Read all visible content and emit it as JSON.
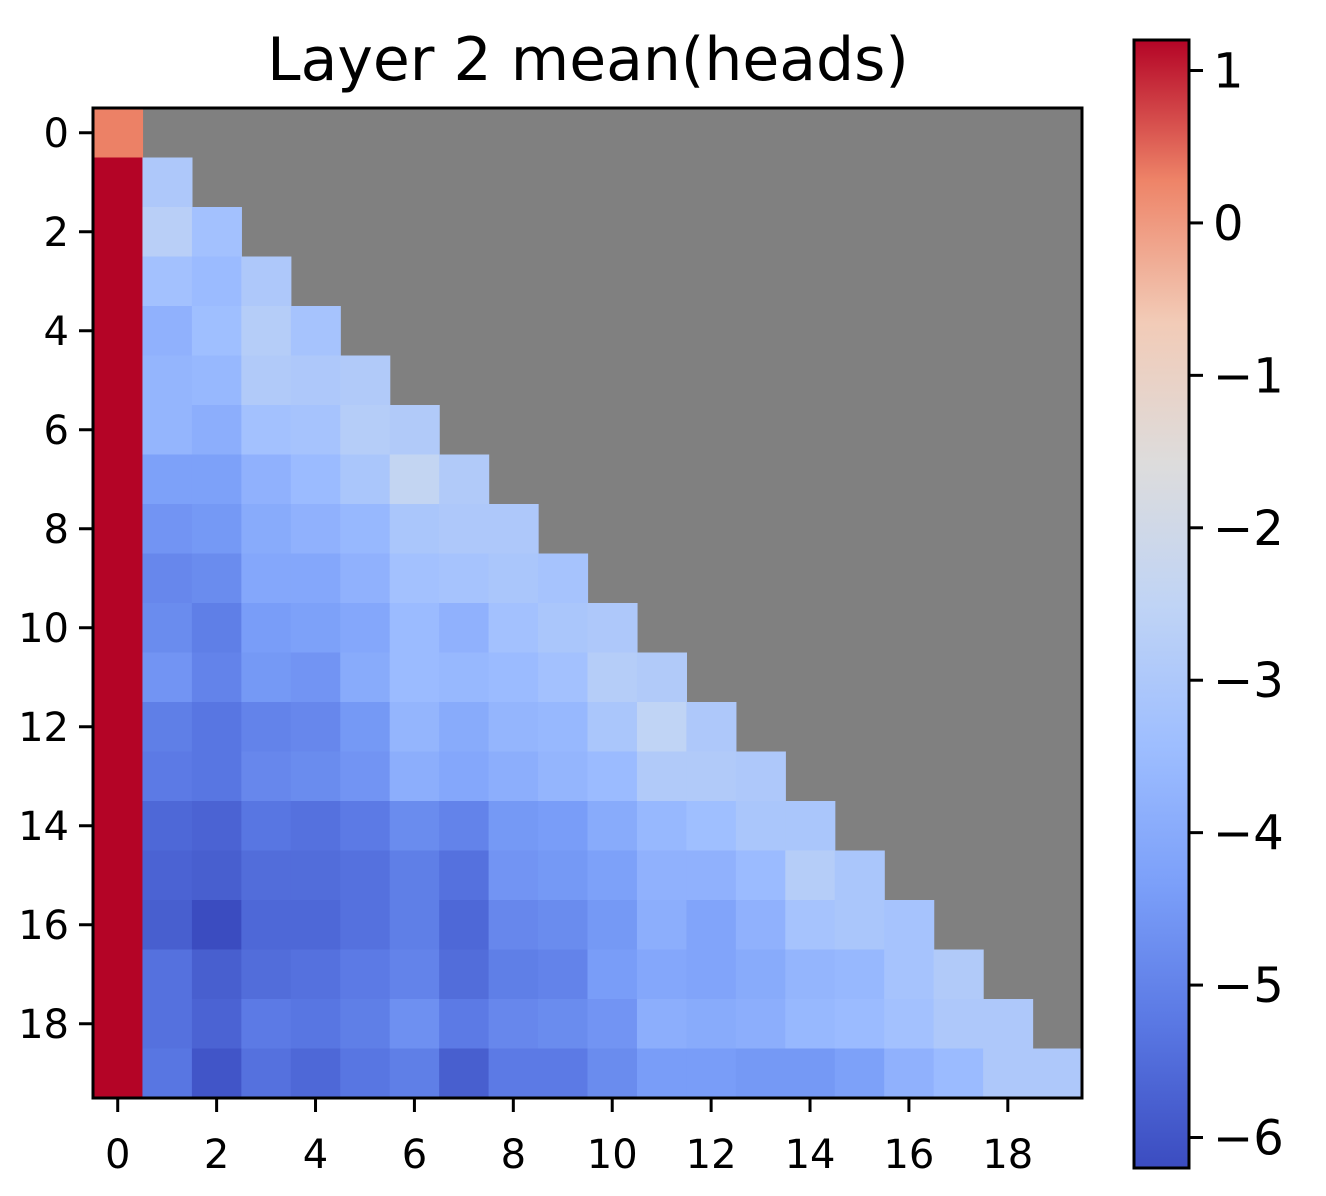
{
  "chart_data": {
    "type": "heatmap",
    "title": "Layer 2 mean(heads)",
    "xlabel": "",
    "ylabel": "",
    "x_ticks": [
      "0",
      "2",
      "4",
      "6",
      "8",
      "10",
      "12",
      "14",
      "16",
      "18"
    ],
    "y_ticks": [
      "0",
      "2",
      "4",
      "6",
      "8",
      "10",
      "12",
      "14",
      "16",
      "18"
    ],
    "rows": 20,
    "cols": 20,
    "mask": "upper-triangle",
    "mask_color": "#808080",
    "colormap": "coolwarm",
    "vmin": -6.2,
    "vmax": 1.2,
    "colorbar_ticks": [
      "1",
      "0",
      "−1",
      "−2",
      "−3",
      "−4",
      "−5",
      "−6"
    ],
    "colorbar_tick_values": [
      1,
      0,
      -1,
      -2,
      -3,
      -4,
      -5,
      -6
    ],
    "values": [
      [
        0.3
      ],
      [
        1.2,
        -3.0
      ],
      [
        1.2,
        -2.7,
        -3.3
      ],
      [
        1.2,
        -3.3,
        -3.5,
        -3.0
      ],
      [
        1.2,
        -3.8,
        -3.4,
        -2.8,
        -3.2
      ],
      [
        1.2,
        -3.7,
        -3.6,
        -2.9,
        -3.0,
        -2.9
      ],
      [
        1.2,
        -3.7,
        -3.9,
        -3.3,
        -3.2,
        -2.8,
        -2.9
      ],
      [
        1.2,
        -4.3,
        -4.3,
        -3.8,
        -3.5,
        -3.1,
        -2.4,
        -2.9
      ],
      [
        1.2,
        -4.6,
        -4.5,
        -4.0,
        -3.8,
        -3.6,
        -3.1,
        -3.0,
        -3.0
      ],
      [
        1.2,
        -4.9,
        -4.8,
        -4.1,
        -4.1,
        -3.8,
        -3.3,
        -3.2,
        -3.1,
        -3.2
      ],
      [
        1.2,
        -4.8,
        -5.1,
        -4.4,
        -4.3,
        -4.1,
        -3.5,
        -3.8,
        -3.3,
        -3.1,
        -3.0
      ],
      [
        1.2,
        -4.6,
        -5.0,
        -4.5,
        -4.6,
        -4.0,
        -3.5,
        -3.6,
        -3.5,
        -3.3,
        -2.8,
        -2.9
      ],
      [
        1.2,
        -5.1,
        -5.3,
        -5.0,
        -4.9,
        -4.5,
        -3.7,
        -4.0,
        -3.7,
        -3.6,
        -3.1,
        -2.5,
        -3.0
      ],
      [
        1.2,
        -5.2,
        -5.3,
        -4.9,
        -4.8,
        -4.6,
        -3.9,
        -4.1,
        -3.9,
        -3.7,
        -3.5,
        -2.9,
        -2.9,
        -3.0
      ],
      [
        1.2,
        -5.6,
        -5.7,
        -5.3,
        -5.4,
        -5.2,
        -4.8,
        -5.0,
        -4.5,
        -4.4,
        -4.0,
        -3.6,
        -3.4,
        -3.1,
        -3.1
      ],
      [
        1.2,
        -5.7,
        -5.8,
        -5.5,
        -5.5,
        -5.4,
        -5.1,
        -5.4,
        -4.6,
        -4.5,
        -4.3,
        -3.8,
        -3.8,
        -3.5,
        -2.8,
        -3.1
      ],
      [
        1.2,
        -5.8,
        -6.2,
        -5.6,
        -5.6,
        -5.4,
        -5.1,
        -5.6,
        -4.9,
        -4.8,
        -4.5,
        -3.9,
        -4.2,
        -3.8,
        -3.2,
        -3.1,
        -3.2
      ],
      [
        1.2,
        -5.4,
        -5.8,
        -5.5,
        -5.4,
        -5.2,
        -5.0,
        -5.5,
        -5.1,
        -5.0,
        -4.4,
        -4.1,
        -4.2,
        -4.0,
        -3.7,
        -3.6,
        -3.2,
        -2.9
      ],
      [
        1.2,
        -5.4,
        -5.7,
        -5.2,
        -5.3,
        -5.1,
        -4.7,
        -5.2,
        -4.9,
        -4.8,
        -4.6,
        -3.9,
        -4.0,
        -3.9,
        -3.6,
        -3.5,
        -3.3,
        -3.0,
        -3.0
      ],
      [
        1.2,
        -5.3,
        -6.0,
        -5.4,
        -5.6,
        -5.3,
        -5.1,
        -5.8,
        -5.2,
        -5.2,
        -4.8,
        -4.4,
        -4.4,
        -4.5,
        -4.5,
        -4.3,
        -3.8,
        -3.5,
        -3.0,
        -3.0
      ]
    ]
  }
}
